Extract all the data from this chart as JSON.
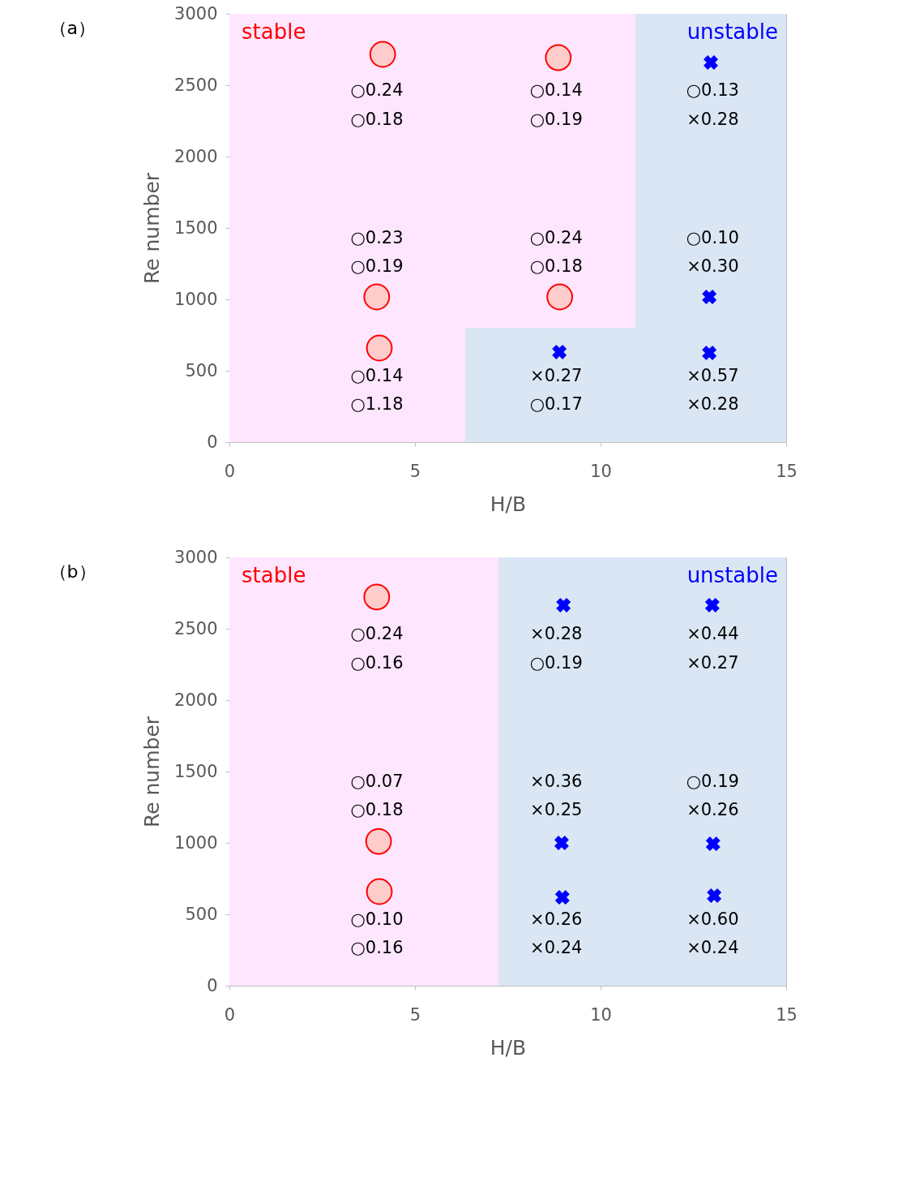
{
  "chart_data": [
    {
      "type": "scatter",
      "title": "（a）",
      "xlabel": "H/B",
      "ylabel": "Re number",
      "xlim": [
        0,
        15
      ],
      "xticks": [
        0,
        5,
        10,
        15
      ],
      "ylim": [
        0,
        3000
      ],
      "yticks": [
        0,
        500,
        1000,
        1500,
        2000,
        2500,
        3000
      ],
      "series": [
        {
          "type": "scatter",
          "marker": "circle",
          "color": "#ff0000",
          "x": [
            4.13,
            8.86,
            3.97,
            8.9,
            4.04
          ],
          "values": [
            2716,
            2693,
            1017,
            1017,
            659
          ]
        },
        {
          "type": "scatter",
          "marker": "cross",
          "color": "#0000ff",
          "x": [
            12.97,
            8.89,
            12.93,
            12.93
          ],
          "values": [
            2659,
            631,
            1017,
            625
          ]
        },
        {
          "type": "area",
          "color": "#dae6f4",
          "x": [
            6.35,
            10.94
          ],
          "values": [
            801,
            801
          ]
        }
      ],
      "bands": [
        {
          "axis": "x",
          "from": 0,
          "to": 10.94,
          "label": "stable",
          "color": "#ffe6ff"
        },
        {
          "axis": "x",
          "from": 10.94,
          "to": 15,
          "label": "unstable",
          "color": "#dae6f4"
        }
      ],
      "annotations": [
        "○0.24",
        "○0.18",
        "○0.14",
        "○0.19",
        "○0.13",
        "×0.28",
        "○0.23",
        "○0.19",
        "○0.24",
        "○0.18",
        "○0.10",
        "×0.30",
        "○0.14",
        "○1.18",
        "×0.27",
        "○0.17",
        "×0.57",
        "×0.28"
      ]
    },
    {
      "type": "scatter",
      "title": "（b）",
      "xlabel": "H/B",
      "ylabel": "Re number",
      "xlim": [
        0,
        15
      ],
      "xticks": [
        0,
        5,
        10,
        15
      ],
      "ylim": [
        0,
        3000
      ],
      "yticks": [
        0,
        500,
        1000,
        1500,
        2000,
        2500,
        3000
      ],
      "series": [
        {
          "type": "scatter",
          "marker": "circle",
          "color": "#ff0000",
          "x": [
            3.97,
            4.02,
            4.04
          ],
          "values": [
            2722,
            1011,
            659
          ]
        },
        {
          "type": "scatter",
          "marker": "cross",
          "color": "#0000ff",
          "x": [
            9.0,
            13.01,
            8.95,
            13.03,
            8.97,
            13.06
          ],
          "values": [
            2665,
            2665,
            1000,
            994,
            619,
            631
          ]
        }
      ],
      "bands": [
        {
          "axis": "x",
          "from": 0,
          "to": 7.25,
          "label": "stable",
          "color": "#ffe6ff"
        },
        {
          "axis": "x",
          "from": 7.25,
          "to": 15,
          "label": "unstable",
          "color": "#dae6f4"
        }
      ],
      "annotations": [
        "○0.24",
        "○0.16",
        "×0.28",
        "○0.19",
        "×0.44",
        "×0.27",
        "○0.07",
        "○0.18",
        "×0.36",
        "×0.25",
        "○0.19",
        "×0.26",
        "○0.10",
        "○0.16",
        "×0.26",
        "×0.24",
        "×0.60",
        "×0.24"
      ]
    }
  ]
}
